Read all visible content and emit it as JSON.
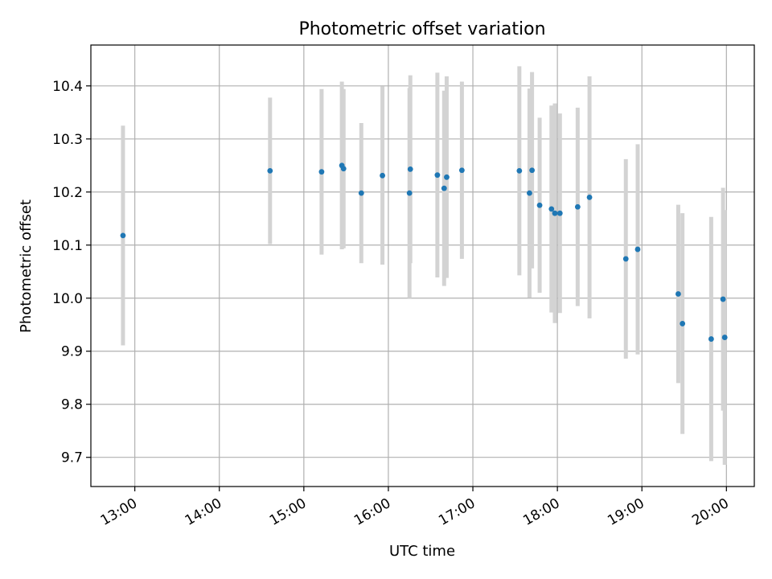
{
  "chart_data": {
    "type": "scatter",
    "title": "Photometric offset variation",
    "xlabel": "UTC time",
    "ylabel": "Photometric offset",
    "grid": true,
    "x_unit": "hours UTC",
    "xlim": [
      12.48,
      20.33
    ],
    "ylim": [
      9.645,
      10.477
    ],
    "xtick_values": [
      13,
      14,
      15,
      16,
      17,
      18,
      19,
      20
    ],
    "xtick_labels": [
      "13:00",
      "14:00",
      "15:00",
      "16:00",
      "17:00",
      "18:00",
      "19:00",
      "20:00"
    ],
    "ytick_values": [
      9.7,
      9.8,
      9.9,
      10.0,
      10.1,
      10.2,
      10.3,
      10.4
    ],
    "ytick_labels": [
      "9.7",
      "9.8",
      "9.9",
      "10.0",
      "10.1",
      "10.2",
      "10.3",
      "10.4"
    ],
    "colors": {
      "point": "#1f77b4",
      "errorbar": "#d3d3d3",
      "grid": "#b0b0b0",
      "frame": "#000000"
    },
    "series": [
      {
        "points": [
          {
            "x": 12.86,
            "y": 10.118,
            "err": 0.207
          },
          {
            "x": 14.6,
            "y": 10.24,
            "err": 0.138
          },
          {
            "x": 15.21,
            "y": 10.238,
            "err": 0.156
          },
          {
            "x": 15.45,
            "y": 10.25,
            "err": 0.158
          },
          {
            "x": 15.47,
            "y": 10.244,
            "err": 0.15
          },
          {
            "x": 15.68,
            "y": 10.198,
            "err": 0.132
          },
          {
            "x": 15.93,
            "y": 10.231,
            "err": 0.168
          },
          {
            "x": 16.25,
            "y": 10.198,
            "err": 0.198
          },
          {
            "x": 16.26,
            "y": 10.243,
            "err": 0.177
          },
          {
            "x": 16.58,
            "y": 10.232,
            "err": 0.193
          },
          {
            "x": 16.66,
            "y": 10.207,
            "err": 0.184
          },
          {
            "x": 16.69,
            "y": 10.228,
            "err": 0.19
          },
          {
            "x": 16.87,
            "y": 10.241,
            "err": 0.167
          },
          {
            "x": 17.55,
            "y": 10.24,
            "err": 0.197
          },
          {
            "x": 17.67,
            "y": 10.198,
            "err": 0.197
          },
          {
            "x": 17.7,
            "y": 10.241,
            "err": 0.185
          },
          {
            "x": 17.79,
            "y": 10.175,
            "err": 0.165
          },
          {
            "x": 17.93,
            "y": 10.168,
            "err": 0.195
          },
          {
            "x": 17.97,
            "y": 10.16,
            "err": 0.207
          },
          {
            "x": 18.03,
            "y": 10.16,
            "err": 0.188
          },
          {
            "x": 18.24,
            "y": 10.172,
            "err": 0.187
          },
          {
            "x": 18.38,
            "y": 10.19,
            "err": 0.228
          },
          {
            "x": 18.81,
            "y": 10.074,
            "err": 0.188
          },
          {
            "x": 18.95,
            "y": 10.092,
            "err": 0.198
          },
          {
            "x": 19.43,
            "y": 10.008,
            "err": 0.168
          },
          {
            "x": 19.48,
            "y": 9.952,
            "err": 0.208
          },
          {
            "x": 19.82,
            "y": 9.923,
            "err": 0.23
          },
          {
            "x": 19.96,
            "y": 9.998,
            "err": 0.21
          },
          {
            "x": 19.98,
            "y": 9.926,
            "err": 0.24
          }
        ]
      }
    ]
  }
}
